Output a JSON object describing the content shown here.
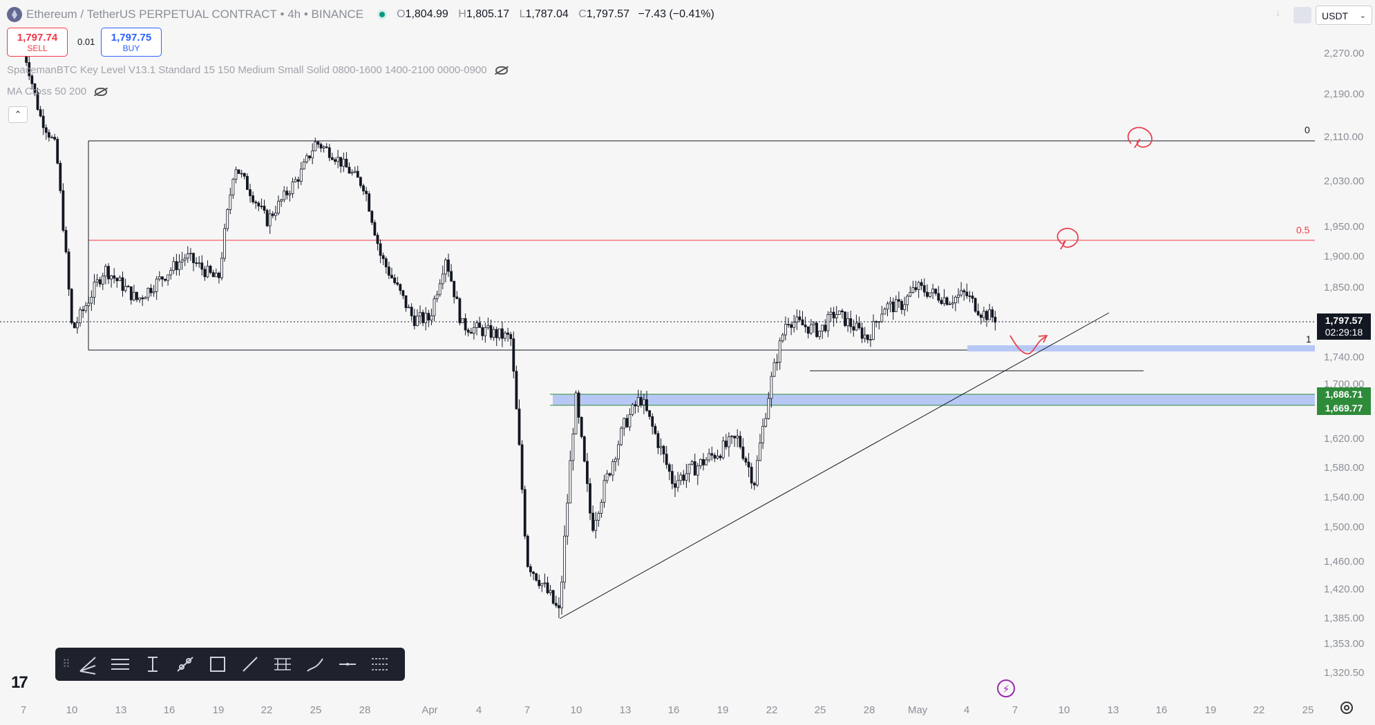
{
  "header": {
    "symbol_title": "Ethereum / TetherUS PERPETUAL CONTRACT",
    "interval": "4h",
    "exchange": "BINANCE",
    "ohlc": {
      "o_key": "O",
      "o": "1,804.99",
      "h_key": "H",
      "h": "1,805.17",
      "l_key": "L",
      "l": "1,787.04",
      "c_key": "C",
      "c": "1,797.57",
      "change": "−7.43 (−0.41%)"
    }
  },
  "trade": {
    "sell_price": "1,797.74",
    "sell_label": "SELL",
    "spread": "0.01",
    "buy_price": "1,797.75",
    "buy_label": "BUY"
  },
  "indicators": [
    {
      "label": "SpacemanBTC Key Level V13.1 Standard 15 150 Medium Small Solid 0800-1600 1400-2100 0000-0900"
    },
    {
      "label": "MA Cross 50 200"
    }
  ],
  "currency_selector": {
    "value": "USDT"
  },
  "price_axis": {
    "ticks": [
      "2,270.00",
      "2,190.00",
      "2,110.00",
      "2,030.00",
      "1,950.00",
      "1,900.00",
      "1,850.00",
      "1,740.00",
      "1,700.00",
      "1,620.00",
      "1,580.00",
      "1,540.00",
      "1,500.00",
      "1,460.00",
      "1,420.00",
      "1,385.00",
      "1,353.00",
      "1,320.50"
    ],
    "current_price": "1,797.57",
    "countdown": "02:29:18",
    "zone_high": "1,686.71",
    "zone_low": "1,669.77"
  },
  "time_axis": {
    "ticks": [
      "7",
      "10",
      "13",
      "16",
      "19",
      "22",
      "25",
      "28",
      "Apr",
      "4",
      "7",
      "10",
      "13",
      "16",
      "19",
      "22",
      "25",
      "28",
      "May",
      "4",
      "7",
      "10",
      "13",
      "16",
      "19",
      "22",
      "25"
    ]
  },
  "fib_levels": {
    "top": "0",
    "mid": "0.5",
    "bottom": "1"
  },
  "colors": {
    "background": "#f6f6f6",
    "candle": "#131722",
    "fib_mid": "#f23645",
    "zone_fill": "#b7c8f5",
    "zone_border": "#2e8b3a",
    "sell": "#f23645",
    "buy": "#2962ff",
    "annotation": "#e8404f"
  },
  "toolbar_icons": [
    "trend-lines-icon",
    "horizontal-lines-icon",
    "measure-icon",
    "ray-icon",
    "rectangle-icon",
    "line-icon",
    "path-icon",
    "brush-icon",
    "horizontal-line-icon",
    "ruler-lines-icon"
  ],
  "chart_data": {
    "type": "candlestick",
    "symbol": "Ethereum / TetherUS PERPETUAL CONTRACT",
    "interval": "4h",
    "x_ticks": [
      "7",
      "10",
      "13",
      "16",
      "19",
      "22",
      "25",
      "28",
      "Apr",
      "4",
      "7",
      "10",
      "13",
      "16",
      "19",
      "22",
      "25",
      "28",
      "May",
      "4",
      "7",
      "10",
      "13",
      "16",
      "19",
      "22",
      "25"
    ],
    "ylim": [
      1300,
      2310
    ],
    "swing_path": [
      [
        "Mar 7",
        2280
      ],
      [
        "Mar 8",
        2150
      ],
      [
        "Mar 9",
        2090
      ],
      [
        "Mar 10",
        1780
      ],
      [
        "Mar 12",
        1880
      ],
      [
        "Mar 14",
        1830
      ],
      [
        "Mar 17",
        1900
      ],
      [
        "Mar 19",
        1860
      ],
      [
        "Mar 20",
        2060
      ],
      [
        "Mar 22",
        1960
      ],
      [
        "Mar 24",
        2040
      ],
      [
        "Mar 25",
        2100
      ],
      [
        "Mar 26",
        2080
      ],
      [
        "Mar 28",
        2020
      ],
      [
        "Mar 29",
        1900
      ],
      [
        "Mar 31",
        1800
      ],
      [
        "Apr 1",
        1800
      ],
      [
        "Apr 2",
        1900
      ],
      [
        "Apr 3",
        1790
      ],
      [
        "Apr 6",
        1770
      ],
      [
        "Apr 7",
        1460
      ],
      [
        "Apr 9",
        1390
      ],
      [
        "Apr 10",
        1680
      ],
      [
        "Apr 11",
        1500
      ],
      [
        "Apr 13",
        1640
      ],
      [
        "Apr 14",
        1680
      ],
      [
        "Apr 16",
        1560
      ],
      [
        "Apr 18",
        1590
      ],
      [
        "Apr 20",
        1620
      ],
      [
        "Apr 21",
        1560
      ],
      [
        "Apr 22",
        1700
      ],
      [
        "Apr 23",
        1800
      ],
      [
        "Apr 25",
        1780
      ],
      [
        "Apr 26",
        1810
      ],
      [
        "Apr 28",
        1770
      ],
      [
        "Apr 29",
        1820
      ],
      [
        "Apr 30",
        1820
      ],
      [
        "May 1",
        1850
      ],
      [
        "May 3",
        1830
      ],
      [
        "May 4",
        1840
      ],
      [
        "May 5",
        1810
      ],
      [
        "May 6",
        1800
      ]
    ],
    "levels": {
      "fib_0": 2110,
      "fib_0_5": 1935,
      "fib_1": 1747,
      "current": 1797.57,
      "demand_zone": [
        1669.77,
        1686.71
      ],
      "support_zone": [
        1745,
        1755
      ]
    }
  }
}
